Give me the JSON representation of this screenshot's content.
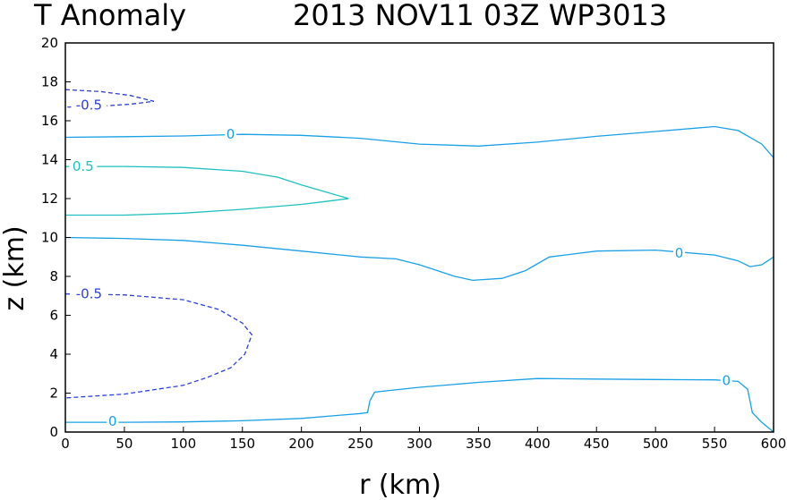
{
  "title": {
    "left": "T Anomaly",
    "right": "2013 NOV11 03Z   WP3013"
  },
  "chart_data": {
    "type": "contour",
    "xlabel": "r (km)",
    "ylabel": "z (km)",
    "xlim": [
      0,
      600
    ],
    "ylim": [
      0,
      20
    ],
    "x_ticks": [
      0,
      50,
      100,
      150,
      200,
      250,
      300,
      350,
      400,
      450,
      500,
      550,
      600
    ],
    "y_ticks": [
      0,
      2,
      4,
      6,
      8,
      10,
      12,
      14,
      16,
      18,
      20
    ],
    "grid": false,
    "colors": {
      "zero": "#1aa0e6",
      "positive": "#20c0c0",
      "negative": "#2a40d8"
    },
    "contours": [
      {
        "level": 0,
        "label": "0",
        "style": "solid",
        "color": "#1aa0e6",
        "label_at": [
          [
            140,
            15.3
          ]
        ],
        "points": [
          [
            0,
            15.15
          ],
          [
            50,
            15.18
          ],
          [
            100,
            15.22
          ],
          [
            150,
            15.3
          ],
          [
            200,
            15.25
          ],
          [
            250,
            15.1
          ],
          [
            300,
            14.8
          ],
          [
            350,
            14.7
          ],
          [
            400,
            14.9
          ],
          [
            450,
            15.2
          ],
          [
            500,
            15.45
          ],
          [
            530,
            15.6
          ],
          [
            550,
            15.7
          ],
          [
            570,
            15.5
          ],
          [
            590,
            14.8
          ],
          [
            600,
            14.1
          ]
        ]
      },
      {
        "level": 0,
        "label": "0",
        "style": "solid",
        "color": "#1aa0e6",
        "label_at": [
          [
            520,
            9.2
          ]
        ],
        "points": [
          [
            0,
            10.0
          ],
          [
            50,
            9.95
          ],
          [
            100,
            9.85
          ],
          [
            150,
            9.6
          ],
          [
            200,
            9.3
          ],
          [
            250,
            9.0
          ],
          [
            280,
            8.9
          ],
          [
            300,
            8.6
          ],
          [
            330,
            8.0
          ],
          [
            345,
            7.8
          ],
          [
            370,
            7.9
          ],
          [
            390,
            8.3
          ],
          [
            410,
            9.0
          ],
          [
            450,
            9.3
          ],
          [
            500,
            9.35
          ],
          [
            550,
            9.1
          ],
          [
            570,
            8.8
          ],
          [
            580,
            8.5
          ],
          [
            590,
            8.6
          ],
          [
            600,
            9.0
          ]
        ]
      },
      {
        "level": 0,
        "label": "0",
        "style": "solid",
        "color": "#1aa0e6",
        "label_at": [
          [
            40,
            0.55
          ],
          [
            560,
            2.65
          ]
        ],
        "points": [
          [
            0,
            0.5
          ],
          [
            50,
            0.5
          ],
          [
            100,
            0.52
          ],
          [
            150,
            0.58
          ],
          [
            200,
            0.7
          ],
          [
            230,
            0.85
          ],
          [
            250,
            0.95
          ],
          [
            256,
            1.0
          ],
          [
            258,
            1.6
          ],
          [
            262,
            2.05
          ],
          [
            300,
            2.3
          ],
          [
            350,
            2.55
          ],
          [
            400,
            2.75
          ],
          [
            450,
            2.72
          ],
          [
            500,
            2.7
          ],
          [
            550,
            2.68
          ],
          [
            570,
            2.6
          ],
          [
            578,
            2.2
          ],
          [
            582,
            1.0
          ],
          [
            590,
            0.5
          ],
          [
            600,
            0.0
          ]
        ]
      },
      {
        "level": 0.5,
        "label": "0.5",
        "style": "solid",
        "color": "#20c0c0",
        "label_at": [
          [
            15,
            13.65
          ]
        ],
        "points": [
          [
            0,
            13.65
          ],
          [
            50,
            13.65
          ],
          [
            100,
            13.6
          ],
          [
            150,
            13.4
          ],
          [
            180,
            13.1
          ],
          [
            200,
            12.7
          ],
          [
            220,
            12.35
          ],
          [
            240,
            12.0
          ],
          [
            220,
            11.85
          ],
          [
            200,
            11.7
          ],
          [
            150,
            11.45
          ],
          [
            100,
            11.25
          ],
          [
            50,
            11.15
          ],
          [
            0,
            11.15
          ]
        ]
      },
      {
        "level": -0.5,
        "label": "-0.5",
        "style": "dashed",
        "color": "#2a40d8",
        "label_at": [
          [
            20,
            16.8
          ]
        ],
        "points": [
          [
            0,
            17.6
          ],
          [
            30,
            17.5
          ],
          [
            55,
            17.3
          ],
          [
            75,
            17.0
          ],
          [
            55,
            16.85
          ],
          [
            30,
            16.75
          ],
          [
            0,
            16.7
          ]
        ]
      },
      {
        "level": -0.5,
        "label": "-0.5",
        "style": "dashed",
        "color": "#2a40d8",
        "label_at": [
          [
            20,
            7.1
          ]
        ],
        "points": [
          [
            0,
            7.1
          ],
          [
            50,
            7.05
          ],
          [
            100,
            6.8
          ],
          [
            130,
            6.3
          ],
          [
            150,
            5.6
          ],
          [
            158,
            5.0
          ],
          [
            152,
            4.0
          ],
          [
            140,
            3.3
          ],
          [
            120,
            2.8
          ],
          [
            100,
            2.4
          ],
          [
            50,
            1.95
          ],
          [
            0,
            1.75
          ]
        ]
      }
    ]
  }
}
